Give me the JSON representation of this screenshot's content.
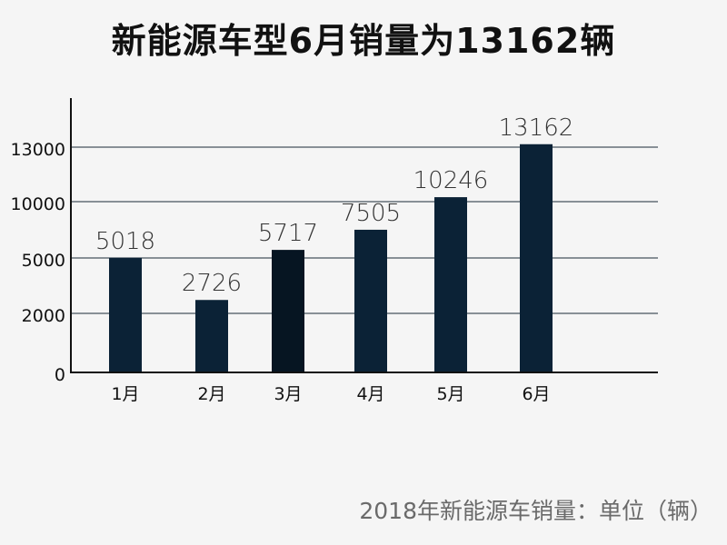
{
  "title": "新能源车型6月销量为13162辆",
  "note": "2018年新能源车销量：单位（辆）",
  "colors": {
    "bar": "#0b2236",
    "bar_highlight": "#061522",
    "grid": "#1c2a38",
    "axis": "#111111",
    "value_label": "#333333",
    "tick_label": "#111111"
  },
  "chart_data": {
    "type": "bar",
    "categories": [
      "1月",
      "2月",
      "3月",
      "4月",
      "5月",
      "6月"
    ],
    "values": [
      5018,
      2726,
      5717,
      7505,
      10246,
      13162
    ],
    "y_tick_labels": [
      "0",
      "2000",
      "5000",
      "10000",
      "13000"
    ],
    "title": "",
    "xlabel": "",
    "ylabel": "",
    "grid": true,
    "legend": false
  }
}
